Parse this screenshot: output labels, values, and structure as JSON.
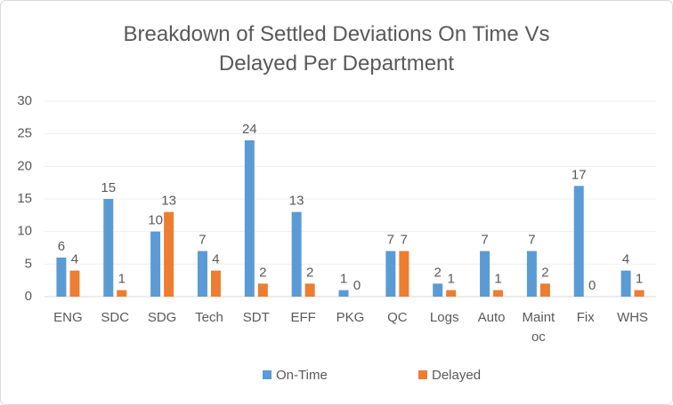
{
  "chart_data": {
    "type": "bar",
    "title": "Breakdown of Settled Deviations On Time Vs Delayed Per Department",
    "categories": [
      "ENG",
      "SDC",
      "SDG",
      "Tech",
      "SDT",
      "EFF",
      "PKG",
      "QC",
      "Logs",
      "Auto",
      "Maint oc",
      "Fix",
      "WHS"
    ],
    "series": [
      {
        "name": "On-Time",
        "color": "#5b9bd5",
        "values": [
          6,
          15,
          10,
          7,
          24,
          13,
          1,
          7,
          2,
          7,
          7,
          17,
          4
        ]
      },
      {
        "name": "Delayed",
        "color": "#ed7d31",
        "values": [
          4,
          1,
          13,
          4,
          2,
          2,
          0,
          7,
          1,
          1,
          2,
          0,
          1
        ]
      }
    ],
    "ylim": [
      0,
      30
    ],
    "yticks": [
      0,
      5,
      10,
      15,
      20,
      25,
      30
    ],
    "grid": true,
    "legend": "bottom"
  }
}
